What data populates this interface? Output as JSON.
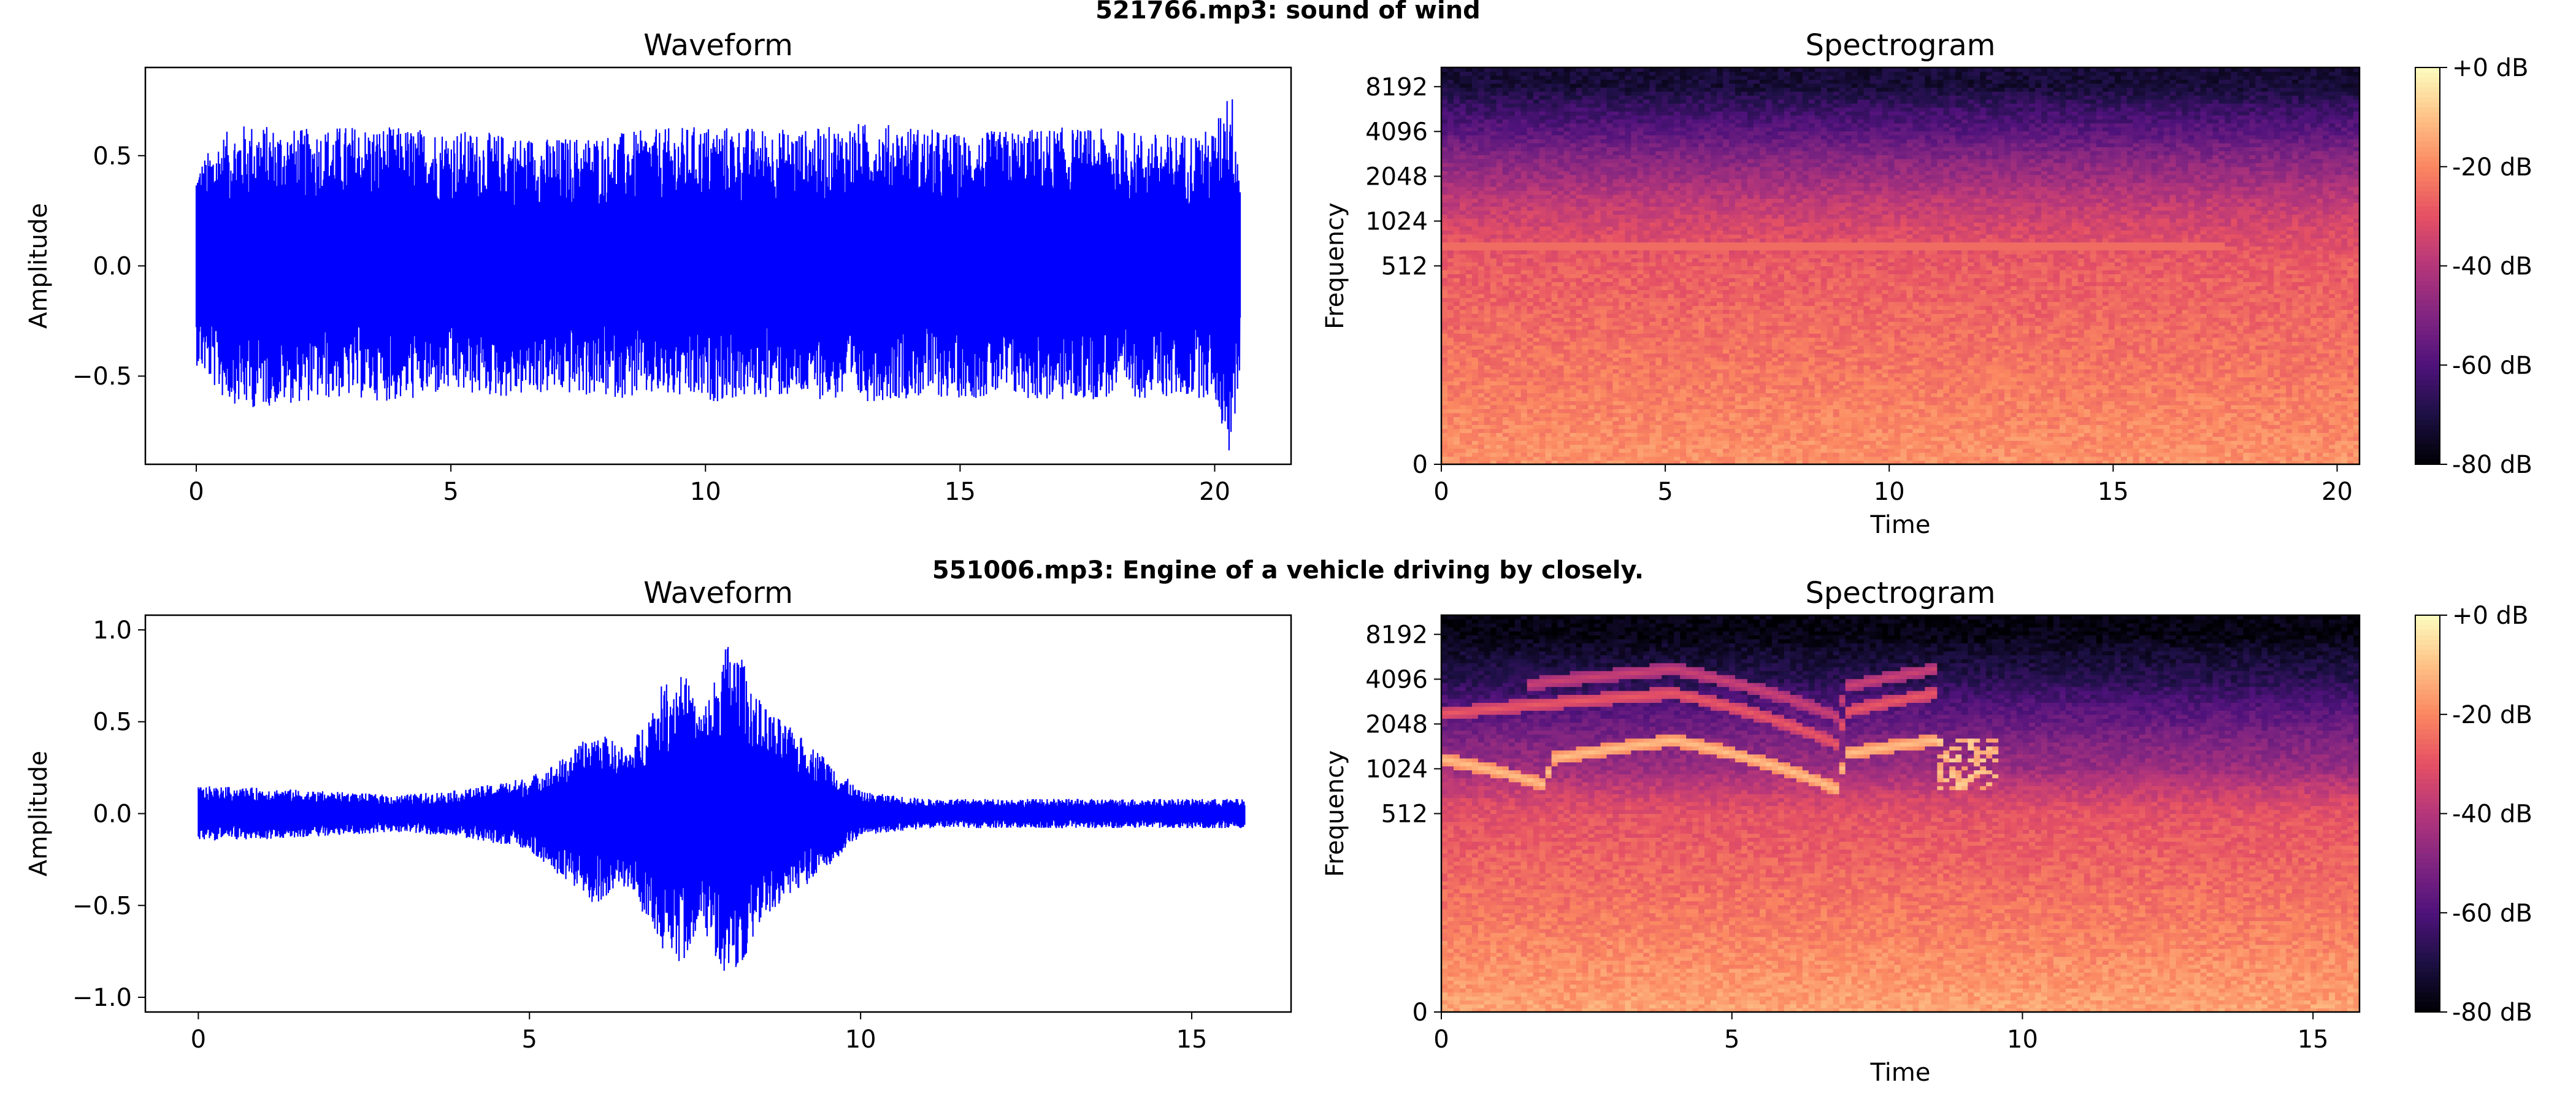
{
  "figure": {
    "rows": [
      {
        "title": "521766.mp3: sound of wind",
        "waveform": {
          "title": "Waveform",
          "ylabel": "Amplitude",
          "xticks": [
            "0",
            "5",
            "10",
            "15",
            "20"
          ],
          "yticks": [
            "−0.5",
            "0.0",
            "0.5"
          ]
        },
        "spectrogram": {
          "title": "Spectrogram",
          "ylabel": "Frequency",
          "xlabel": "Time",
          "xticks": [
            "0",
            "5",
            "10",
            "15",
            "20"
          ],
          "yticks": [
            "0",
            "512",
            "1024",
            "2048",
            "4096",
            "8192"
          ],
          "colorbar": [
            "+0 dB",
            "-20 dB",
            "-40 dB",
            "-60 dB",
            "-80 dB"
          ]
        }
      },
      {
        "title": "551006.mp3: Engine of a vehicle driving by closely.",
        "waveform": {
          "title": "Waveform",
          "ylabel": "Amplitude",
          "xticks": [
            "0",
            "5",
            "10",
            "15"
          ],
          "yticks": [
            "−1.0",
            "−0.5",
            "0.0",
            "0.5",
            "1.0"
          ]
        },
        "spectrogram": {
          "title": "Spectrogram",
          "ylabel": "Frequency",
          "xlabel": "Time",
          "xticks": [
            "0",
            "5",
            "10",
            "15"
          ],
          "yticks": [
            "0",
            "512",
            "1024",
            "2048",
            "4096",
            "8192"
          ],
          "colorbar": [
            "+0 dB",
            "-20 dB",
            "-40 dB",
            "-60 dB",
            "-80 dB"
          ]
        }
      }
    ]
  },
  "chart_data": [
    {
      "type": "line",
      "title": "Waveform",
      "suptitle": "521766.mp3: sound of wind",
      "xlabel": "",
      "ylabel": "Amplitude",
      "xlim": [
        -1.0,
        21.5
      ],
      "ylim": [
        -0.9,
        0.9
      ],
      "x_ticks": [
        0,
        5,
        10,
        15,
        20
      ],
      "y_ticks": [
        -0.5,
        0.0,
        0.5
      ],
      "duration_s": 20.5,
      "series": [
        {
          "color": "#0000ff",
          "envelope_time": [
            0,
            0.5,
            1,
            2,
            3,
            4,
            5,
            6,
            7,
            8,
            9,
            10,
            11,
            12,
            13,
            14,
            15,
            16,
            17,
            18,
            19,
            20,
            20.3,
            20.5
          ],
          "envelope_max": [
            0.45,
            0.6,
            0.65,
            0.62,
            0.64,
            0.63,
            0.62,
            0.6,
            0.58,
            0.6,
            0.62,
            0.64,
            0.63,
            0.62,
            0.65,
            0.64,
            0.6,
            0.62,
            0.63,
            0.62,
            0.6,
            0.62,
            0.86,
            0.5
          ],
          "envelope_min": [
            -0.45,
            -0.6,
            -0.65,
            -0.62,
            -0.6,
            -0.62,
            -0.58,
            -0.6,
            -0.58,
            -0.6,
            -0.6,
            -0.62,
            -0.6,
            -0.6,
            -0.62,
            -0.6,
            -0.6,
            -0.6,
            -0.62,
            -0.6,
            -0.6,
            -0.6,
            -0.88,
            -0.5
          ]
        }
      ]
    },
    {
      "type": "heatmap",
      "title": "Spectrogram",
      "suptitle": "521766.mp3: sound of wind",
      "xlabel": "Time",
      "ylabel": "Frequency",
      "xlim": [
        0,
        20.5
      ],
      "x_ticks": [
        0,
        5,
        10,
        15,
        20
      ],
      "y_ticks": [
        0,
        512,
        1024,
        2048,
        4096,
        8192
      ],
      "y_scale": "log2 (librosa 'log' frequency axis)",
      "colormap": "magma",
      "colorbar_range_db": [
        -80,
        0
      ],
      "colorbar_ticks": [
        "+0 dB",
        "-20 dB",
        "-40 dB",
        "-60 dB",
        "-80 dB"
      ],
      "description_profile_db_by_freq": [
        [
          0,
          -18
        ],
        [
          512,
          -28
        ],
        [
          1024,
          -34
        ],
        [
          2048,
          -45
        ],
        [
          4096,
          -58
        ],
        [
          8192,
          -72
        ]
      ],
      "features": [
        {
          "freq": 700,
          "t_start": 0,
          "t_end": 17.5,
          "db": -25
        }
      ]
    },
    {
      "type": "line",
      "title": "Waveform",
      "suptitle": "551006.mp3: Engine of a vehicle driving by closely.",
      "xlabel": "",
      "ylabel": "Amplitude",
      "xlim": [
        -0.8,
        16.5
      ],
      "ylim": [
        -1.08,
        1.08
      ],
      "x_ticks": [
        0,
        5,
        10,
        15
      ],
      "y_ticks": [
        -1.0,
        -0.5,
        0.0,
        0.5,
        1.0
      ],
      "duration_s": 15.8,
      "series": [
        {
          "color": "#0000ff",
          "envelope_time": [
            0,
            1,
            2,
            3,
            4,
            5,
            5.5,
            6,
            6.5,
            7,
            7.3,
            7.6,
            8,
            8.2,
            8.5,
            9,
            9.5,
            10,
            11,
            12,
            13,
            14,
            15,
            15.8
          ],
          "envelope_max": [
            0.15,
            0.14,
            0.12,
            0.1,
            0.13,
            0.2,
            0.3,
            0.45,
            0.35,
            0.7,
            0.8,
            0.55,
            0.95,
            0.85,
            0.6,
            0.45,
            0.3,
            0.12,
            0.08,
            0.08,
            0.08,
            0.08,
            0.08,
            0.08
          ],
          "envelope_min": [
            -0.15,
            -0.14,
            -0.12,
            -0.1,
            -0.13,
            -0.2,
            -0.35,
            -0.5,
            -0.4,
            -0.75,
            -0.82,
            -0.6,
            -0.95,
            -0.85,
            -0.6,
            -0.45,
            -0.3,
            -0.12,
            -0.08,
            -0.08,
            -0.08,
            -0.08,
            -0.08,
            -0.08
          ]
        }
      ]
    },
    {
      "type": "heatmap",
      "title": "Spectrogram",
      "suptitle": "551006.mp3: Engine of a vehicle driving by closely.",
      "xlabel": "Time",
      "ylabel": "Frequency",
      "xlim": [
        0,
        15.8
      ],
      "x_ticks": [
        0,
        5,
        10,
        15
      ],
      "y_ticks": [
        0,
        512,
        1024,
        2048,
        4096,
        8192
      ],
      "y_scale": "log2 (librosa 'log' frequency axis)",
      "colormap": "magma",
      "colorbar_range_db": [
        -80,
        0
      ],
      "colorbar_ticks": [
        "+0 dB",
        "-20 dB",
        "-40 dB",
        "-60 dB",
        "-80 dB"
      ],
      "description_profile_db_by_freq": [
        [
          0,
          -15
        ],
        [
          512,
          -30
        ],
        [
          1024,
          -45
        ],
        [
          2048,
          -55
        ],
        [
          4096,
          -68
        ],
        [
          8192,
          -78
        ]
      ],
      "features": [
        {
          "kind": "harmonic",
          "points": [
            [
              0,
              1200
            ],
            [
              1.8,
              800
            ],
            [
              1.9,
              1200
            ],
            [
              4,
              1600
            ],
            [
              6.8,
              750
            ],
            [
              7,
              1300
            ],
            [
              8.5,
              1600
            ]
          ],
          "db": -10
        },
        {
          "kind": "harmonic",
          "points": [
            [
              0,
              2400
            ],
            [
              4,
              3300
            ],
            [
              6.8,
              1500
            ],
            [
              7,
              2500
            ],
            [
              8.5,
              3300
            ]
          ],
          "db": -28
        },
        {
          "kind": "harmonic",
          "points": [
            [
              1.5,
              3800
            ],
            [
              4,
              4800
            ],
            [
              6.8,
              2300
            ],
            [
              7,
              3700
            ],
            [
              8.5,
              4800
            ]
          ],
          "db": -35
        },
        {
          "kind": "oscillation",
          "t_range": [
            8.5,
            9.6
          ],
          "freq_range": [
            750,
            1600
          ],
          "db": -12
        }
      ]
    }
  ]
}
